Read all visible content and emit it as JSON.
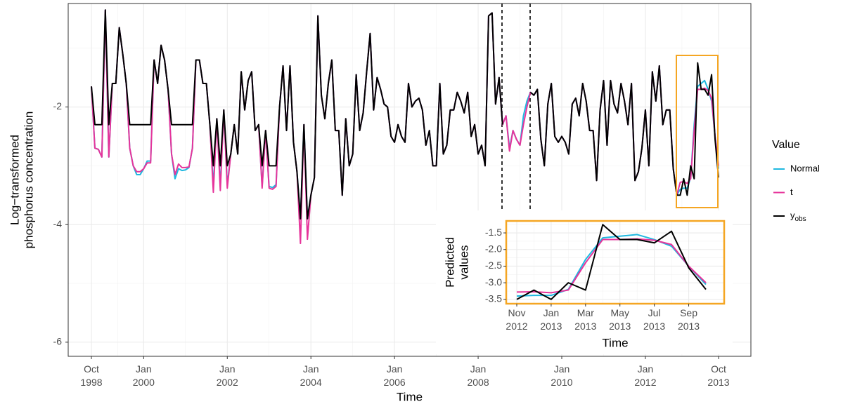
{
  "chart_data": [
    {
      "type": "line",
      "xlabel": "Time",
      "ylabel": [
        "Log−transformed",
        "phosphorus concentration"
      ],
      "legend_title": "Value",
      "legend": "right",
      "grid": true,
      "x": [
        "1998-10",
        "1998-11",
        "1998-12",
        "1999-01",
        "1999-02",
        "1999-03",
        "1999-04",
        "1999-05",
        "1999-06",
        "1999-07",
        "1999-08",
        "1999-09",
        "1999-10",
        "1999-11",
        "1999-12",
        "2000-01",
        "2000-02",
        "2000-03",
        "2000-04",
        "2000-05",
        "2000-06",
        "2000-07",
        "2000-08",
        "2000-09",
        "2000-10",
        "2000-11",
        "2000-12",
        "2001-01",
        "2001-02",
        "2001-03",
        "2001-04",
        "2001-05",
        "2001-06",
        "2001-07",
        "2001-08",
        "2001-09",
        "2001-10",
        "2001-11",
        "2001-12",
        "2002-01",
        "2002-02",
        "2002-03",
        "2002-04",
        "2002-05",
        "2002-06",
        "2002-07",
        "2002-08",
        "2002-09",
        "2002-10",
        "2002-11",
        "2002-12",
        "2003-01",
        "2003-02",
        "2003-03",
        "2003-04",
        "2003-05",
        "2003-06",
        "2003-07",
        "2003-08",
        "2003-09",
        "2003-10",
        "2003-11",
        "2003-12",
        "2004-01",
        "2004-02",
        "2004-03",
        "2004-04",
        "2004-05",
        "2004-06",
        "2004-07",
        "2004-08",
        "2004-09",
        "2004-10",
        "2004-11",
        "2004-12",
        "2005-01",
        "2005-02",
        "2005-03",
        "2005-04",
        "2005-05",
        "2005-06",
        "2005-07",
        "2005-08",
        "2005-09",
        "2005-10",
        "2005-11",
        "2005-12",
        "2006-01",
        "2006-02",
        "2006-03",
        "2006-04",
        "2006-05",
        "2006-06",
        "2006-07",
        "2006-08",
        "2006-09",
        "2006-10",
        "2006-11",
        "2006-12",
        "2007-01",
        "2007-02",
        "2007-03",
        "2007-04",
        "2007-05",
        "2007-06",
        "2007-07",
        "2007-08",
        "2007-09",
        "2007-10",
        "2007-11",
        "2007-12",
        "2008-01",
        "2008-02",
        "2008-03",
        "2008-04",
        "2008-05",
        "2008-06",
        "2008-07",
        "2008-08",
        "2008-09",
        "2008-10",
        "2008-11",
        "2008-12",
        "2009-01",
        "2009-02",
        "2009-03",
        "2009-04",
        "2009-05",
        "2009-06",
        "2009-07",
        "2009-08",
        "2009-09",
        "2009-10",
        "2009-11",
        "2009-12",
        "2010-01",
        "2010-02",
        "2010-03",
        "2010-04",
        "2010-05",
        "2010-06",
        "2010-07",
        "2010-08",
        "2010-09",
        "2010-10",
        "2010-11",
        "2010-12",
        "2011-01",
        "2011-02",
        "2011-03",
        "2011-04",
        "2011-05",
        "2011-06",
        "2011-07",
        "2011-08",
        "2011-09",
        "2011-10",
        "2011-11",
        "2011-12",
        "2012-01",
        "2012-02",
        "2012-03",
        "2012-04",
        "2012-05",
        "2012-06",
        "2012-07",
        "2012-08",
        "2012-09",
        "2012-10",
        "2012-11",
        "2012-12",
        "2013-01",
        "2013-02",
        "2013-03",
        "2013-04",
        "2013-05",
        "2013-06",
        "2013-07",
        "2013-08",
        "2013-09",
        "2013-10"
      ],
      "series": [
        {
          "name": "Normal",
          "color": "#1fb8e0",
          "values": [
            -1.65,
            -2.7,
            -2.72,
            -2.85,
            -0.35,
            -2.85,
            -1.6,
            -1.6,
            -0.65,
            -1.1,
            -1.6,
            -2.7,
            -3.0,
            -3.15,
            -3.15,
            -3.05,
            -2.92,
            -2.92,
            -1.2,
            -1.6,
            -0.95,
            -1.2,
            -1.7,
            -2.8,
            -3.22,
            -3.05,
            -3.08,
            -3.07,
            -3.03,
            -2.7,
            -1.2,
            -1.2,
            -1.6,
            -1.6,
            -2.3,
            -3.35,
            -2.2,
            -3.35,
            -2.05,
            -3.33,
            -2.8,
            -2.3,
            -2.8,
            -1.4,
            -2.05,
            -1.55,
            -1.4,
            -2.4,
            -2.3,
            -3.35,
            -2.4,
            -3.35,
            -3.37,
            -3.32,
            -2.0,
            -1.3,
            -2.4,
            -1.3,
            -2.6,
            -3.1,
            -3.9,
            -2.3,
            -3.9,
            -3.5,
            -3.2,
            -0.45,
            -1.8,
            -2.2,
            -1.6,
            -1.2,
            -2.4,
            -2.4,
            -3.5,
            -2.2,
            -3.0,
            -2.8,
            -1.45,
            -2.4,
            -2.1,
            -1.4,
            -0.75,
            -2.05,
            -1.5,
            -1.7,
            -1.95,
            -2.0,
            -2.5,
            -2.6,
            -2.3,
            -2.5,
            -2.6,
            -1.6,
            -2.0,
            -1.9,
            -1.85,
            -2.05,
            -2.65,
            -2.4,
            -3.0,
            -3.0,
            -1.6,
            -2.8,
            -2.65,
            -2.05,
            -2.05,
            -1.75,
            -1.9,
            -2.1,
            -1.75,
            -2.5,
            -2.3,
            -2.8,
            -2.65,
            -3.0,
            -0.45,
            -0.4,
            -1.95,
            -1.5,
            -2.3,
            -2.15,
            -2.7,
            -2.4,
            -2.55,
            -2.65,
            -2.15,
            -1.9,
            -1.75,
            -1.8,
            -1.7,
            -2.55,
            -3.0,
            -1.95,
            -1.6,
            -2.5,
            -2.6,
            -2.5,
            -2.6,
            -2.8,
            -1.95,
            -1.85,
            -2.15,
            -1.6,
            -1.9,
            -2.4,
            -2.4,
            -3.25,
            -2.05,
            -1.55,
            -2.65,
            -1.55,
            -1.95,
            -2.1,
            -1.6,
            -1.9,
            -2.3,
            -1.6,
            -3.25,
            -3.1,
            -2.7,
            -2.05,
            -3.0,
            -1.4,
            -1.9,
            -1.3,
            -2.3,
            -2.05,
            -2.05,
            -3.05,
            -3.5,
            -3.4,
            -3.38,
            -3.38,
            -3.2,
            -2.3,
            -1.65,
            -1.6,
            -1.55,
            -1.7,
            -1.9,
            -2.5,
            -3.05
          ]
        },
        {
          "name": "t",
          "color": "#e6349b",
          "values": [
            -1.65,
            -2.7,
            -2.72,
            -2.85,
            -0.35,
            -2.85,
            -1.6,
            -1.6,
            -0.65,
            -1.1,
            -1.6,
            -2.7,
            -3.0,
            -3.1,
            -3.1,
            -3.05,
            -2.95,
            -2.95,
            -1.2,
            -1.6,
            -0.95,
            -1.2,
            -1.7,
            -2.8,
            -3.15,
            -2.97,
            -3.03,
            -3.03,
            -3.02,
            -2.7,
            -1.2,
            -1.2,
            -1.6,
            -1.6,
            -2.3,
            -3.45,
            -2.2,
            -3.42,
            -2.05,
            -3.38,
            -2.8,
            -2.3,
            -2.8,
            -1.4,
            -2.05,
            -1.55,
            -1.4,
            -2.4,
            -2.3,
            -3.38,
            -2.4,
            -3.38,
            -3.4,
            -3.35,
            -2.0,
            -1.3,
            -2.4,
            -1.3,
            -2.6,
            -3.1,
            -4.32,
            -2.3,
            -4.25,
            -3.5,
            -3.2,
            -0.45,
            -1.8,
            -2.2,
            -1.6,
            -1.2,
            -2.4,
            -2.4,
            -3.5,
            -2.2,
            -3.0,
            -2.8,
            -1.45,
            -2.4,
            -2.1,
            -1.4,
            -0.75,
            -2.05,
            -1.5,
            -1.7,
            -1.95,
            -2.0,
            -2.5,
            -2.6,
            -2.3,
            -2.5,
            -2.6,
            -1.6,
            -2.0,
            -1.9,
            -1.85,
            -2.05,
            -2.65,
            -2.4,
            -3.0,
            -3.0,
            -1.6,
            -2.8,
            -2.65,
            -2.05,
            -2.05,
            -1.75,
            -1.9,
            -2.1,
            -1.75,
            -2.5,
            -2.3,
            -2.8,
            -2.65,
            -3.0,
            -0.45,
            -0.4,
            -1.95,
            -1.5,
            -2.3,
            -2.15,
            -2.75,
            -2.4,
            -2.55,
            -2.65,
            -2.3,
            -2.0,
            -1.75,
            -1.8,
            -1.7,
            -2.55,
            -3.0,
            -1.95,
            -1.6,
            -2.5,
            -2.6,
            -2.5,
            -2.6,
            -2.8,
            -1.95,
            -1.85,
            -2.15,
            -1.6,
            -1.9,
            -2.4,
            -2.4,
            -3.25,
            -2.05,
            -1.55,
            -2.65,
            -1.55,
            -1.95,
            -2.1,
            -1.6,
            -1.9,
            -2.3,
            -1.6,
            -3.25,
            -3.1,
            -2.7,
            -2.05,
            -3.0,
            -1.4,
            -1.9,
            -1.3,
            -2.3,
            -2.05,
            -2.05,
            -3.05,
            -3.5,
            -3.28,
            -3.27,
            -3.3,
            -3.22,
            -2.4,
            -1.7,
            -1.7,
            -1.68,
            -1.72,
            -1.85,
            -2.5,
            -3.0
          ]
        },
        {
          "name": "y_obs",
          "color": "#000000",
          "values": [
            -1.65,
            -2.3,
            -2.3,
            -2.3,
            -0.35,
            -2.3,
            -1.6,
            -1.6,
            -0.65,
            -1.1,
            -1.6,
            -2.3,
            -2.3,
            -2.3,
            -2.3,
            -2.3,
            -2.3,
            -2.3,
            -1.2,
            -1.6,
            -0.95,
            -1.2,
            -1.7,
            -2.3,
            -2.3,
            -2.3,
            -2.3,
            -2.3,
            -2.3,
            -2.3,
            -1.2,
            -1.2,
            -1.6,
            -1.6,
            -2.3,
            -3.0,
            -2.2,
            -3.0,
            -2.05,
            -3.0,
            -2.8,
            -2.3,
            -2.8,
            -1.4,
            -2.05,
            -1.55,
            -1.4,
            -2.4,
            -2.3,
            -3.0,
            -2.4,
            -3.0,
            -3.0,
            -3.0,
            -2.0,
            -1.3,
            -2.4,
            -1.3,
            -2.6,
            -3.1,
            -3.9,
            -2.3,
            -3.9,
            -3.5,
            -3.2,
            -0.45,
            -1.8,
            -2.2,
            -1.6,
            -1.2,
            -2.4,
            -2.4,
            -3.5,
            -2.2,
            -3.0,
            -2.8,
            -1.45,
            -2.4,
            -2.1,
            -1.4,
            -0.75,
            -2.05,
            -1.5,
            -1.7,
            -1.95,
            -2.0,
            -2.5,
            -2.6,
            -2.3,
            -2.5,
            -2.6,
            -1.6,
            -2.0,
            -1.9,
            -1.85,
            -2.05,
            -2.65,
            -2.4,
            -3.0,
            -3.0,
            -1.6,
            -2.8,
            -2.65,
            -2.05,
            -2.05,
            -1.75,
            -1.9,
            -2.1,
            -1.75,
            -2.5,
            -2.3,
            -2.8,
            -2.65,
            -3.0,
            -0.45,
            -0.4,
            -1.95,
            -1.5,
            -2.3,
            null,
            null,
            null,
            null,
            null,
            null,
            null,
            -1.75,
            -1.8,
            -1.7,
            -2.55,
            -3.0,
            -1.95,
            -1.6,
            -2.5,
            -2.6,
            -2.5,
            -2.6,
            -2.8,
            -1.95,
            -1.85,
            -2.15,
            -1.6,
            -1.9,
            -2.4,
            -2.4,
            -3.25,
            -2.05,
            -1.55,
            -2.65,
            -1.55,
            -1.95,
            -2.1,
            -1.6,
            -1.9,
            -2.3,
            -1.6,
            -3.25,
            -3.1,
            -2.7,
            -2.05,
            -3.0,
            -1.4,
            -1.9,
            -1.3,
            -2.3,
            -2.05,
            -2.05,
            -3.05,
            -3.5,
            -3.5,
            -3.22,
            -3.5,
            -3.0,
            -3.22,
            -1.25,
            -1.7,
            -1.7,
            -1.8,
            -1.45,
            -2.55,
            -3.2
          ]
        }
      ],
      "xlim": [
        "1998-10",
        "2013-10"
      ],
      "xticks": [
        {
          "value": "1998-10",
          "label": "Oct 1998"
        },
        {
          "value": "2000-01",
          "label": "Jan 2000"
        },
        {
          "value": "2002-01",
          "label": "Jan 2002"
        },
        {
          "value": "2004-01",
          "label": "Jan 2004"
        },
        {
          "value": "2006-01",
          "label": "Jan 2006"
        },
        {
          "value": "2008-01",
          "label": "Jan 2008"
        },
        {
          "value": "2010-01",
          "label": "Jan 2010"
        },
        {
          "value": "2012-01",
          "label": "Jan 2012"
        },
        {
          "value": "2013-10",
          "label": "Oct 2013"
        }
      ],
      "ylim": [
        -6.24,
        -0.24
      ],
      "yticks": [
        -6,
        -4,
        -2
      ]
    },
    {
      "type": "line",
      "xlabel": "Time",
      "ylabel": [
        "Predicted",
        "values"
      ],
      "grid": true,
      "x": [
        "2012-11",
        "2012-12",
        "2013-01",
        "2013-02",
        "2013-03",
        "2013-04",
        "2013-05",
        "2013-06",
        "2013-07",
        "2013-08",
        "2013-09",
        "2013-10"
      ],
      "series": [
        {
          "name": "Normal",
          "color": "#1fb8e0",
          "values": [
            -3.4,
            -3.38,
            -3.38,
            -3.2,
            -2.3,
            -1.65,
            -1.6,
            -1.55,
            -1.7,
            -1.9,
            -2.5,
            -3.05
          ]
        },
        {
          "name": "t",
          "color": "#e6349b",
          "values": [
            -3.28,
            -3.27,
            -3.3,
            -3.22,
            -2.4,
            -1.7,
            -1.7,
            -1.68,
            -1.72,
            -1.85,
            -2.5,
            -3.0
          ]
        },
        {
          "name": "y_obs",
          "color": "#000000",
          "values": [
            -3.5,
            -3.22,
            -3.5,
            -3.0,
            -3.22,
            -1.25,
            -1.7,
            -1.7,
            -1.8,
            -1.45,
            -2.55,
            -3.2
          ]
        }
      ],
      "xlim": [
        "2012-11",
        "2013-10"
      ],
      "xticks": [
        {
          "value": "2012-11",
          "label": "Nov 2012"
        },
        {
          "value": "2013-01",
          "label": "Jan 2013"
        },
        {
          "value": "2013-03",
          "label": "Mar 2013"
        },
        {
          "value": "2013-05",
          "label": "May 2013"
        },
        {
          "value": "2013-07",
          "label": "Jul 2013"
        },
        {
          "value": "2013-09",
          "label": "Sep 2013"
        }
      ],
      "ylim": [
        -3.63,
        -1.14
      ],
      "yticks": [
        -3.5,
        {
          "value": -3,
          "label": "-3.0"
        },
        -2.5,
        {
          "value": -2,
          "label": "-2.0"
        },
        -1.5
      ]
    }
  ]
}
